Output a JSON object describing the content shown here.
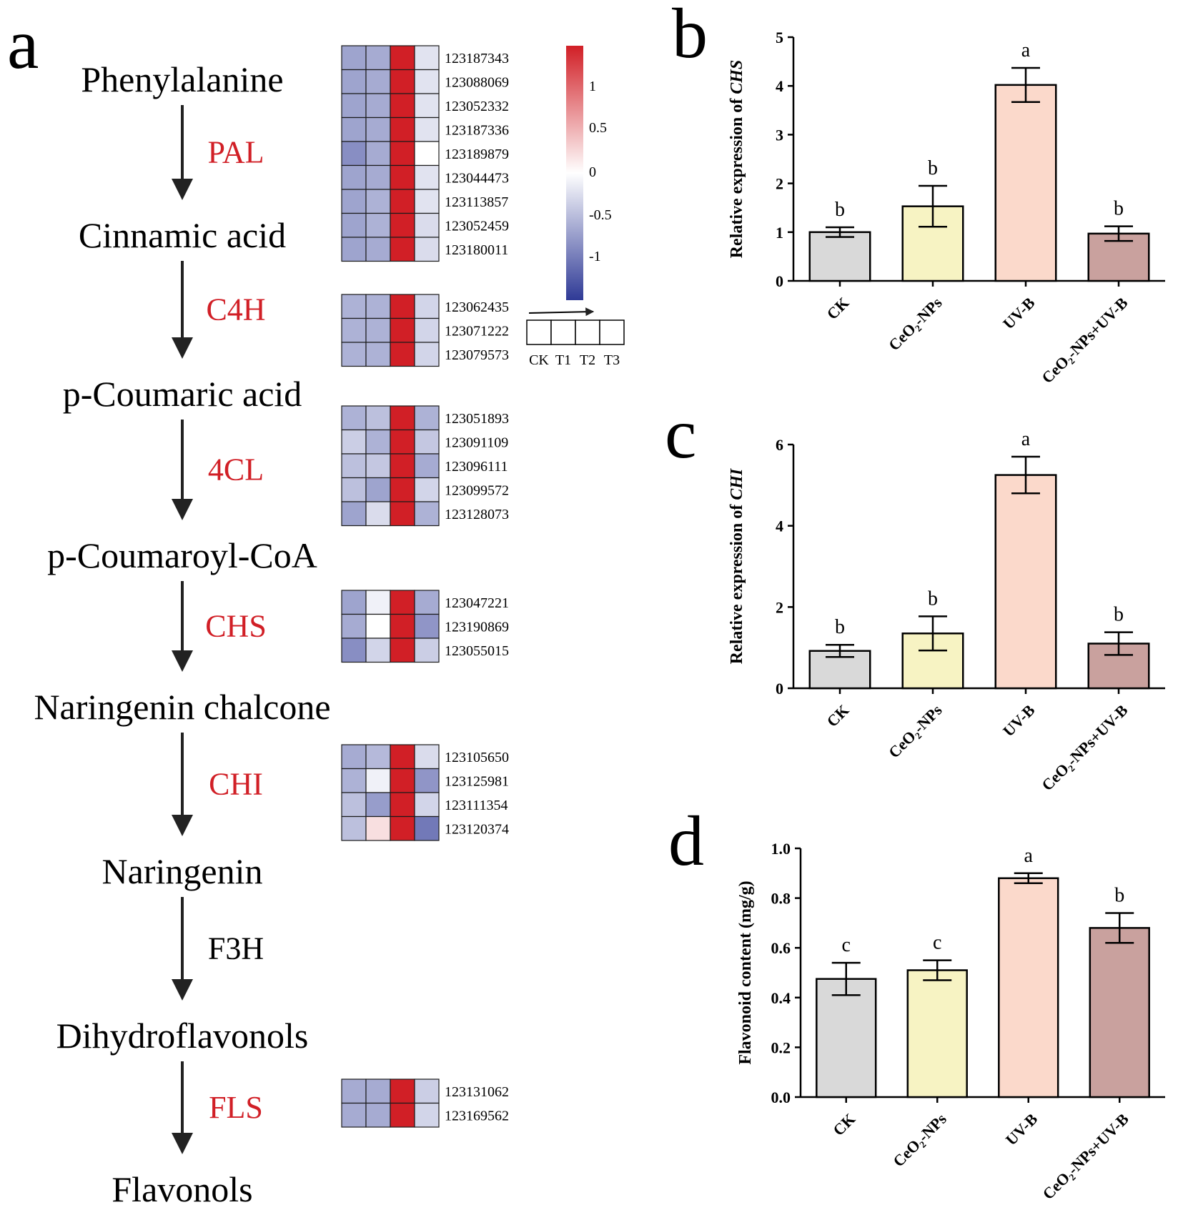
{
  "panel_a": {
    "letter": "a",
    "colorbar_ticks": [
      "1",
      "0.5",
      "0",
      "-0.5",
      "-1"
    ],
    "groups": [
      "CK",
      "T1",
      "T2",
      "T3"
    ],
    "steps": [
      {
        "substrate": "Phenylalanine",
        "enzyme": "PAL",
        "highlight": true
      },
      {
        "substrate": "Cinnamic acid",
        "enzyme": "C4H",
        "highlight": true
      },
      {
        "substrate": "p-Coumaric acid",
        "enzyme": "4CL",
        "highlight": true
      },
      {
        "substrate": "p-Coumaroyl-CoA",
        "enzyme": "CHS",
        "highlight": true
      },
      {
        "substrate": "Naringenin chalcone",
        "enzyme": "CHI",
        "highlight": true
      },
      {
        "substrate": "Naringenin",
        "enzyme": "F3H",
        "highlight": false
      },
      {
        "substrate": "Dihydroflavonols",
        "enzyme": "FLS",
        "highlight": true
      },
      {
        "substrate": "Flavonols",
        "enzyme": "",
        "highlight": false
      }
    ],
    "heatmaps": [
      {
        "enzyme": "PAL",
        "rows": [
          {
            "id": "123187343",
            "values": [
              -0.65,
              -0.6,
              1.4,
              -0.2
            ]
          },
          {
            "id": "123088069",
            "values": [
              -0.65,
              -0.6,
              1.4,
              -0.2
            ]
          },
          {
            "id": "123052332",
            "values": [
              -0.65,
              -0.6,
              1.4,
              -0.2
            ]
          },
          {
            "id": "123187336",
            "values": [
              -0.65,
              -0.6,
              1.4,
              -0.2
            ]
          },
          {
            "id": "123189879",
            "values": [
              -0.8,
              -0.6,
              1.4,
              0.0
            ]
          },
          {
            "id": "123044473",
            "values": [
              -0.65,
              -0.6,
              1.4,
              -0.2
            ]
          },
          {
            "id": "123113857",
            "values": [
              -0.65,
              -0.55,
              1.4,
              -0.2
            ]
          },
          {
            "id": "123052459",
            "values": [
              -0.65,
              -0.55,
              1.4,
              -0.25
            ]
          },
          {
            "id": "123180011",
            "values": [
              -0.65,
              -0.6,
              1.4,
              -0.25
            ]
          }
        ]
      },
      {
        "enzyme": "C4H",
        "rows": [
          {
            "id": "123062435",
            "values": [
              -0.55,
              -0.55,
              1.4,
              -0.3
            ]
          },
          {
            "id": "123071222",
            "values": [
              -0.55,
              -0.55,
              1.4,
              -0.3
            ]
          },
          {
            "id": "123079573",
            "values": [
              -0.55,
              -0.55,
              1.4,
              -0.3
            ]
          }
        ]
      },
      {
        "enzyme": "4CL",
        "rows": [
          {
            "id": "123051893",
            "values": [
              -0.55,
              -0.45,
              1.4,
              -0.55
            ]
          },
          {
            "id": "123091109",
            "values": [
              -0.35,
              -0.55,
              1.4,
              -0.4
            ]
          },
          {
            "id": "123096111",
            "values": [
              -0.45,
              -0.4,
              1.4,
              -0.6
            ]
          },
          {
            "id": "123099572",
            "values": [
              -0.45,
              -0.65,
              1.4,
              -0.3
            ]
          },
          {
            "id": "123128073",
            "values": [
              -0.65,
              -0.25,
              1.4,
              -0.55
            ]
          }
        ]
      },
      {
        "enzyme": "CHS",
        "rows": [
          {
            "id": "123047221",
            "values": [
              -0.65,
              -0.1,
              1.4,
              -0.6
            ]
          },
          {
            "id": "123190869",
            "values": [
              -0.6,
              0.0,
              1.4,
              -0.75
            ]
          },
          {
            "id": "123055015",
            "values": [
              -0.8,
              -0.3,
              1.4,
              -0.35
            ]
          }
        ]
      },
      {
        "enzyme": "CHI",
        "rows": [
          {
            "id": "123105650",
            "values": [
              -0.6,
              -0.5,
              1.4,
              -0.25
            ]
          },
          {
            "id": "123125981",
            "values": [
              -0.55,
              -0.1,
              1.4,
              -0.75
            ]
          },
          {
            "id": "123111354",
            "values": [
              -0.45,
              -0.7,
              1.4,
              -0.3
            ]
          },
          {
            "id": "123120374",
            "values": [
              -0.45,
              0.2,
              1.4,
              -0.95
            ]
          }
        ]
      },
      {
        "enzyme": "FLS",
        "rows": [
          {
            "id": "123131062",
            "values": [
              -0.6,
              -0.6,
              1.4,
              -0.35
            ]
          },
          {
            "id": "123169562",
            "values": [
              -0.6,
              -0.6,
              1.4,
              -0.3
            ]
          }
        ]
      }
    ]
  },
  "chart_data": [
    {
      "panel": "b",
      "type": "bar",
      "categories": [
        "CK",
        "CeO₂-NPs",
        "UV-B",
        "CeO₂-NPs+UV-B"
      ],
      "values": [
        1.0,
        1.53,
        4.02,
        0.97
      ],
      "errors": [
        0.1,
        0.42,
        0.35,
        0.15
      ],
      "significance": [
        "b",
        "b",
        "a",
        "b"
      ],
      "ylabel_prefix": "Relative expression of ",
      "ylabel_gene": "CHS",
      "ylim": [
        0,
        5
      ],
      "yticks": [
        "0",
        "1",
        "2",
        "3",
        "4",
        "5"
      ],
      "colors": [
        "#d9d9d9",
        "#f7f3c3",
        "#fbd9cb",
        "#c9a19e"
      ]
    },
    {
      "panel": "c",
      "type": "bar",
      "categories": [
        "CK",
        "CeO₂-NPs",
        "UV-B",
        "CeO₂-NPs+UV-B"
      ],
      "values": [
        0.92,
        1.35,
        5.25,
        1.1
      ],
      "errors": [
        0.15,
        0.42,
        0.45,
        0.28
      ],
      "significance": [
        "b",
        "b",
        "a",
        "b"
      ],
      "ylabel_prefix": "Relative expression of ",
      "ylabel_gene": "CHI",
      "ylim": [
        0,
        6
      ],
      "yticks": [
        "0",
        "2",
        "4",
        "6"
      ],
      "colors": [
        "#d9d9d9",
        "#f7f3c3",
        "#fbd9cb",
        "#c9a19e"
      ]
    },
    {
      "panel": "d",
      "type": "bar",
      "categories": [
        "CK",
        "CeO₂-NPs",
        "UV-B",
        "CeO₂-NPs+UV-B"
      ],
      "values": [
        0.475,
        0.51,
        0.88,
        0.68
      ],
      "errors": [
        0.065,
        0.04,
        0.02,
        0.06
      ],
      "significance": [
        "c",
        "c",
        "a",
        "b"
      ],
      "ylabel_prefix": "Flavonoid content (mg/g)",
      "ylabel_gene": "",
      "ylim": [
        0,
        1.0
      ],
      "yticks": [
        "0.0",
        "0.2",
        "0.4",
        "0.6",
        "0.8",
        "1.0"
      ],
      "colors": [
        "#d9d9d9",
        "#f7f3c3",
        "#fbd9cb",
        "#c9a19e"
      ]
    }
  ],
  "colors": {
    "enzyme_highlight": "#d11f26",
    "enzyme_plain": "#000000",
    "heat_low": "#2f3a96",
    "heat_mid": "#ffffff",
    "heat_high": "#d11f26"
  }
}
